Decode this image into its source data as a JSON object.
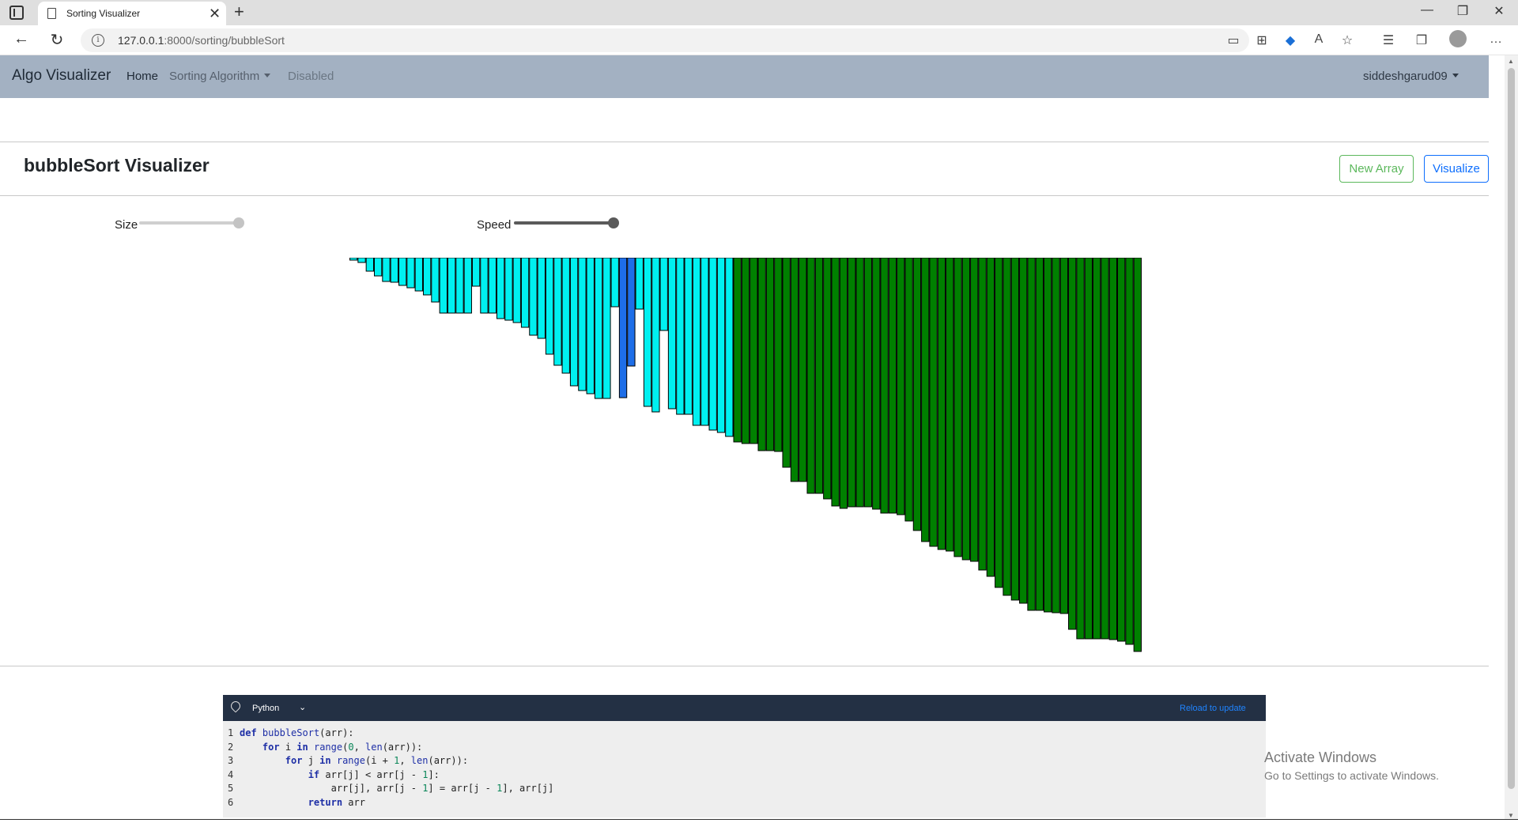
{
  "browser": {
    "tab_title": "Sorting Visualizer",
    "url_prefix": "127.0.0.1",
    "url_rest": ":8000/sorting/bubbleSort",
    "new_tab": "+",
    "close_tab": "✕",
    "minimize": "—",
    "restore": "❐",
    "close_window": "✕",
    "more": "…"
  },
  "navbar": {
    "brand": "Algo Visualizer",
    "links": [
      {
        "label": "Home",
        "color": "#1f2a36"
      },
      {
        "label": "Sorting Algorithm",
        "color": "#56606d"
      },
      {
        "label": "Disabled",
        "color": "#6b7784"
      }
    ],
    "user": "siddeshgarud09"
  },
  "page": {
    "title": "bubbleSort Visualizer",
    "new_array": "New Array",
    "visualize": "Visualize",
    "size_label": "Size",
    "speed_label": "Speed",
    "size_level": 1.0,
    "speed_level": 1.0
  },
  "colors": {
    "unsorted": "#00f0f0",
    "comparing": "#1e6ee8",
    "sorted": "#008000",
    "bar_border": "#000000"
  },
  "bars": {
    "comparing_indices": [
      33,
      34
    ],
    "sorted_from_index": 47,
    "values": [
      3,
      6,
      17,
      23,
      30,
      31,
      35,
      38,
      42,
      47,
      56,
      70,
      70,
      70,
      70,
      36,
      70,
      70,
      77,
      79,
      82,
      88,
      98,
      102,
      122,
      136,
      146,
      162,
      168,
      172,
      178,
      178,
      62,
      177,
      137,
      65,
      188,
      195,
      92,
      191,
      198,
      198,
      212,
      212,
      218,
      221,
      226,
      233,
      235,
      235,
      244,
      244,
      245,
      265,
      283,
      283,
      298,
      298,
      305,
      314,
      317,
      315,
      315,
      315,
      318,
      323,
      323,
      325,
      333,
      345,
      359,
      365,
      369,
      371,
      378,
      382,
      384,
      395,
      403,
      417,
      427,
      433,
      437,
      446,
      446,
      448,
      449,
      450,
      470,
      482,
      482,
      482,
      482,
      483,
      485,
      489,
      498
    ],
    "max_value": 500
  },
  "editor": {
    "language": "Python",
    "reload": "Reload to update",
    "lines": [
      {
        "n": "1",
        "code": "def bubbleSort(arr):"
      },
      {
        "n": "2",
        "code": "    for i in range(0, len(arr)):"
      },
      {
        "n": "3",
        "code": "        for j in range(i + 1, len(arr)):"
      },
      {
        "n": "4",
        "code": "            if arr[j] < arr[j - 1]:"
      },
      {
        "n": "5",
        "code": "                arr[j], arr[j - 1] = arr[j - 1], arr[j]"
      },
      {
        "n": "6",
        "code": "            return arr"
      }
    ]
  },
  "watermark": {
    "line1": "Activate Windows",
    "line2": "Go to Settings to activate Windows."
  }
}
